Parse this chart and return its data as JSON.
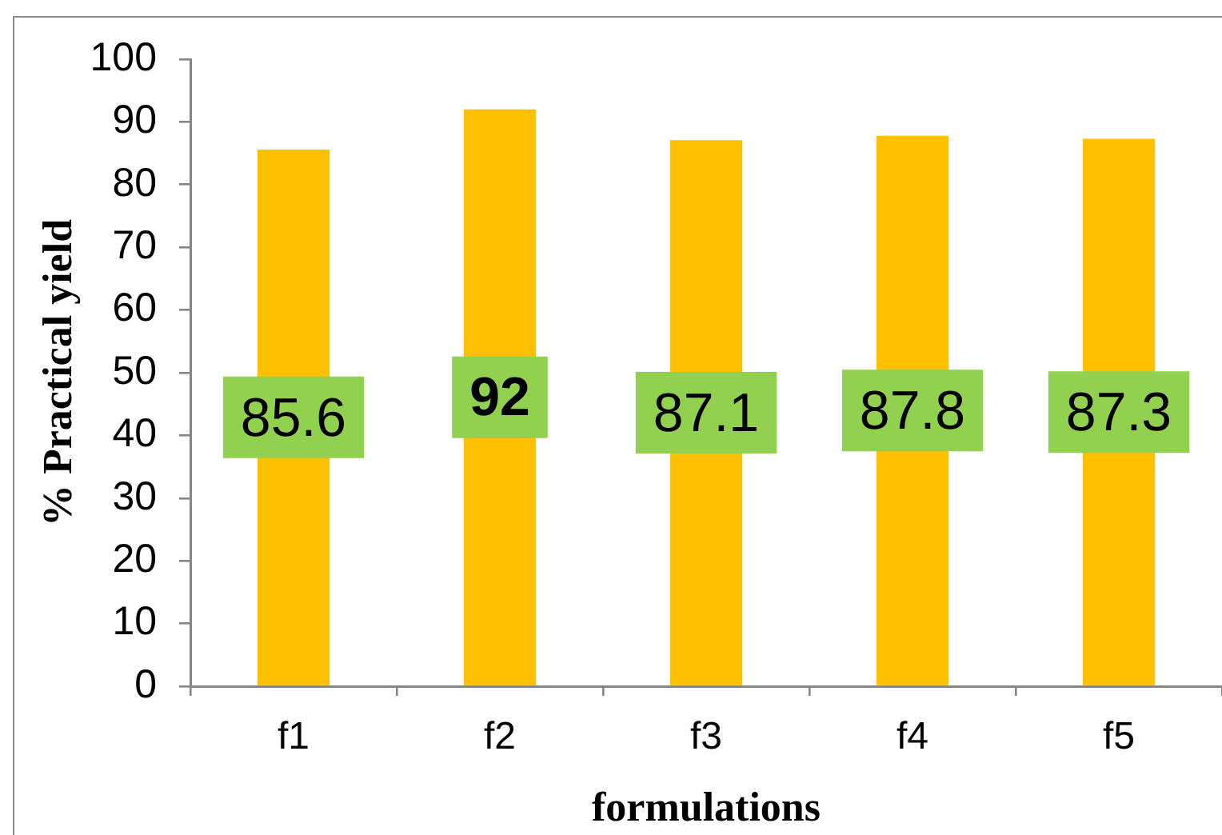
{
  "chart_data": {
    "type": "bar",
    "categories": [
      "f1",
      "f2",
      "f3",
      "f4",
      "f5"
    ],
    "values": [
      85.6,
      92,
      87.1,
      87.8,
      87.3
    ],
    "color": "#ffc000",
    "xlabel": "formulations",
    "ylabel": "% Practical yield",
    "ylim": [
      0,
      100
    ],
    "yticks": [
      0,
      10,
      20,
      30,
      40,
      50,
      60,
      70,
      80,
      90,
      100
    ],
    "data_labels": true
  }
}
